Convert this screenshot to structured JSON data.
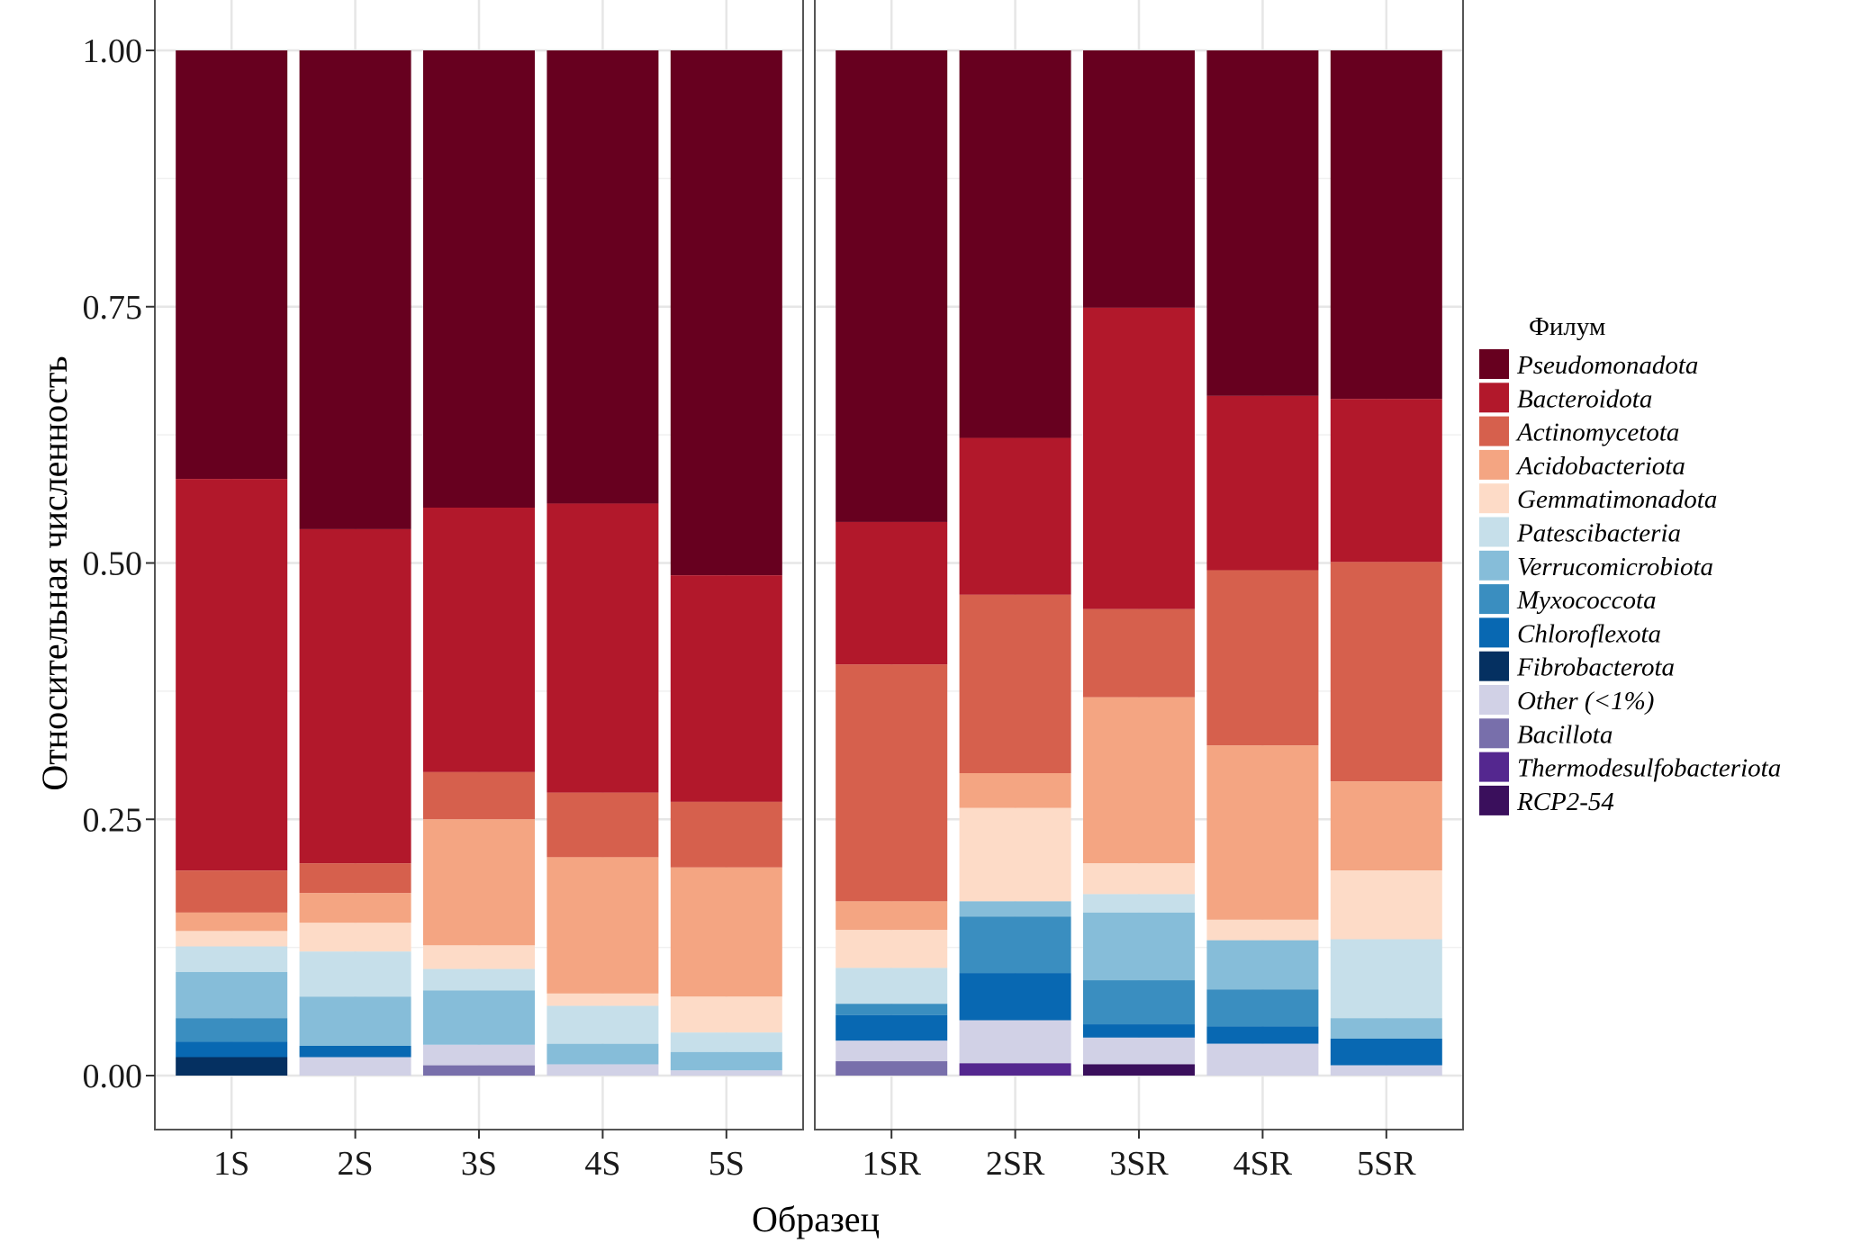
{
  "chart_data": {
    "type": "bar",
    "stacked": true,
    "orientation": "vertical",
    "title": "",
    "xlabel": "Образец",
    "ylabel": "Относительная численность",
    "ylim": [
      0,
      1
    ],
    "yticks": [
      0,
      0.25,
      0.5,
      0.75,
      1.0
    ],
    "ytick_labels": [
      "0.00",
      "0.25",
      "0.50",
      "0.75",
      "1.00"
    ],
    "grid": true,
    "legend": {
      "title": "Филум",
      "placement": "right"
    },
    "panels": [
      {
        "categories": [
          "1S",
          "2S",
          "3S",
          "4S",
          "5S"
        ]
      },
      {
        "categories": [
          "1SR",
          "2SR",
          "3SR",
          "4SR",
          "5SR"
        ]
      }
    ],
    "categories": [
      "1S",
      "2S",
      "3S",
      "4S",
      "5S",
      "1SR",
      "2SR",
      "3SR",
      "4SR",
      "5SR"
    ],
    "series": [
      {
        "name": "Pseudomonadota",
        "color": "#67001F",
        "values": [
          0.418,
          0.467,
          0.446,
          0.442,
          0.512,
          0.46,
          0.378,
          0.251,
          0.337,
          0.34
        ]
      },
      {
        "name": "Bacteroidota",
        "color": "#B2182B",
        "values": [
          0.382,
          0.326,
          0.258,
          0.282,
          0.221,
          0.139,
          0.153,
          0.294,
          0.17,
          0.159
        ]
      },
      {
        "name": "Actinomycetota",
        "color": "#D6604D",
        "values": [
          0.041,
          0.029,
          0.046,
          0.063,
          0.064,
          0.231,
          0.174,
          0.086,
          0.171,
          0.214
        ]
      },
      {
        "name": "Acidobacteriota",
        "color": "#F4A582",
        "values": [
          0.018,
          0.029,
          0.123,
          0.133,
          0.126,
          0.028,
          0.034,
          0.162,
          0.17,
          0.087
        ]
      },
      {
        "name": "Gemmatimonadota",
        "color": "#FDDBC7",
        "values": [
          0.015,
          0.028,
          0.023,
          0.012,
          0.035,
          0.037,
          0.091,
          0.03,
          0.02,
          0.067
        ]
      },
      {
        "name": "Patescibacteria",
        "color": "#C6DFEA",
        "values": [
          0.025,
          0.044,
          0.021,
          0.037,
          0.019,
          0.035,
          0.0,
          0.018,
          0.0,
          0.077
        ]
      },
      {
        "name": "Verrucomicrobiota",
        "color": "#86BDD9",
        "values": [
          0.045,
          0.048,
          0.053,
          0.02,
          0.018,
          0.0,
          0.015,
          0.066,
          0.048,
          0.02
        ]
      },
      {
        "name": "Myxococcota",
        "color": "#3A8EC0",
        "values": [
          0.023,
          0.0,
          0.0,
          0.0,
          0.0,
          0.011,
          0.055,
          0.043,
          0.036,
          0.0
        ]
      },
      {
        "name": "Chloroflexota",
        "color": "#0868B2",
        "values": [
          0.015,
          0.011,
          0.0,
          0.0,
          0.0,
          0.025,
          0.046,
          0.013,
          0.017,
          0.026
        ]
      },
      {
        "name": "Fibrobacterota",
        "color": "#053061",
        "values": [
          0.018,
          0.0,
          0.0,
          0.0,
          0.0,
          0.0,
          0.0,
          0.0,
          0.0,
          0.0
        ]
      },
      {
        "name": "Other (<1%)",
        "color": "#D1D1E6",
        "values": [
          0.0,
          0.018,
          0.02,
          0.011,
          0.005,
          0.02,
          0.042,
          0.026,
          0.031,
          0.01
        ]
      },
      {
        "name": "Bacillota",
        "color": "#786FAB",
        "values": [
          0.0,
          0.0,
          0.01,
          0.0,
          0.0,
          0.014,
          0.0,
          0.0,
          0.0,
          0.0
        ]
      },
      {
        "name": "Thermodesulfobacteriota",
        "color": "#54278F",
        "values": [
          0.0,
          0.0,
          0.0,
          0.0,
          0.0,
          0.0,
          0.012,
          0.0,
          0.0,
          0.0
        ]
      },
      {
        "name": "RCP2-54",
        "color": "#3A0F5C",
        "values": [
          0.0,
          0.0,
          0.0,
          0.0,
          0.0,
          0.0,
          0.0,
          0.011,
          0.0,
          0.0
        ]
      }
    ]
  }
}
